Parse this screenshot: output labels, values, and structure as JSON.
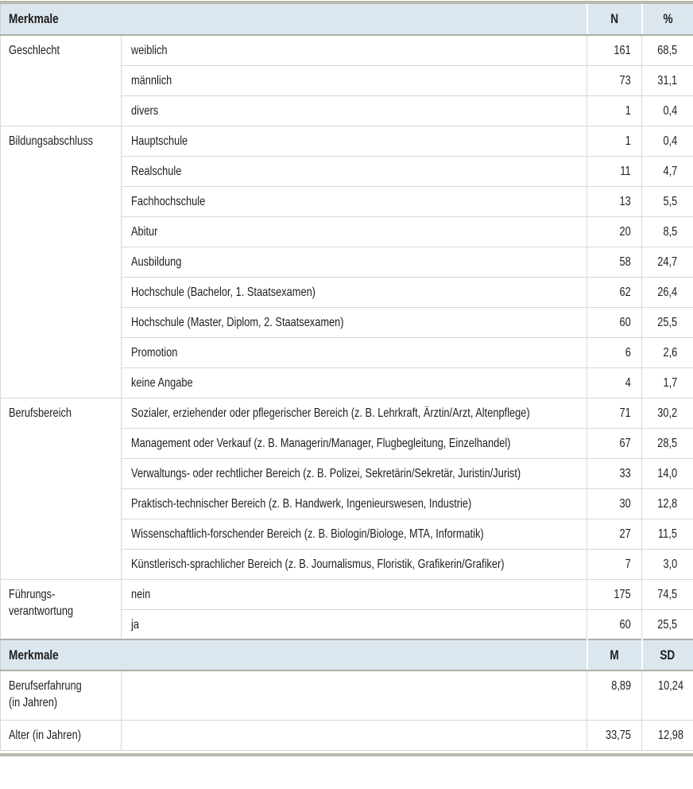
{
  "colors": {
    "header_bg": "#dce6ee",
    "frame": "#bcb8af",
    "header_border": "#aeaea6",
    "grid": "#d8d8d4",
    "text": "#1e1e1e"
  },
  "table": {
    "header_counts": {
      "label": "Merkmale",
      "col_a": "N",
      "col_b": "%"
    },
    "header_stats": {
      "label": "Merkmale",
      "col_a": "M",
      "col_b": "SD"
    },
    "groups": [
      {
        "label": "Geschlecht",
        "rows": [
          {
            "text": "weiblich",
            "n": "161",
            "pct": "68,5"
          },
          {
            "text": "männlich",
            "n": "73",
            "pct": "31,1"
          },
          {
            "text": "divers",
            "n": "1",
            "pct": "0,4"
          }
        ]
      },
      {
        "label": "Bildungsabschluss",
        "rows": [
          {
            "text": "Hauptschule",
            "n": "1",
            "pct": "0,4"
          },
          {
            "text": "Realschule",
            "n": "11",
            "pct": "4,7"
          },
          {
            "text": "Fachhochschule",
            "n": "13",
            "pct": "5,5"
          },
          {
            "text": "Abitur",
            "n": "20",
            "pct": "8,5"
          },
          {
            "text": "Ausbildung",
            "n": "58",
            "pct": "24,7"
          },
          {
            "text": "Hochschule (Bachelor, 1. Staatsexamen)",
            "n": "62",
            "pct": "26,4"
          },
          {
            "text": "Hochschule (Master, Diplom, 2. Staatsexamen)",
            "n": "60",
            "pct": "25,5"
          },
          {
            "text": "Promotion",
            "n": "6",
            "pct": "2,6"
          },
          {
            "text": "keine Angabe",
            "n": "4",
            "pct": "1,7"
          }
        ]
      },
      {
        "label": "Berufsbereich",
        "rows": [
          {
            "text": "Sozialer, erziehender oder pflegerischer Bereich (z. B. Lehrkraft, Ärztin/Arzt, Altenpflege)",
            "n": "71",
            "pct": "30,2"
          },
          {
            "text": "Management oder Verkauf (z. B. Managerin/Manager, Flugbegleitung, Einzelhandel)",
            "n": "67",
            "pct": "28,5"
          },
          {
            "text": "Verwaltungs- oder rechtlicher Bereich (z. B. Polizei, Sekretärin/Sekretär, Juristin/Jurist)",
            "n": "33",
            "pct": "14,0"
          },
          {
            "text": "Praktisch-technischer Bereich (z. B. Handwerk, Ingenieurswesen, Industrie)",
            "n": "30",
            "pct": "12,8"
          },
          {
            "text": "Wissenschaftlich-forschender Bereich (z. B. Biologin/Biologe, MTA, Informatik)",
            "n": "27",
            "pct": "11,5"
          },
          {
            "text": "Künstlerisch-sprachlicher Bereich (z. B. Journalismus, Floristik, Grafikerin/Grafiker)",
            "n": "7",
            "pct": "3,0"
          }
        ]
      },
      {
        "label": "Führungs-\nverantwortung",
        "rows": [
          {
            "text": "nein",
            "n": "175",
            "pct": "74,5"
          },
          {
            "text": "ja",
            "n": "60",
            "pct": "25,5"
          }
        ]
      }
    ],
    "stats": [
      {
        "label": "Berufserfahrung\n(in Jahren)",
        "m": "8,89",
        "sd": "10,24"
      },
      {
        "label": "Alter (in Jahren)",
        "m": "33,75",
        "sd": "12,98"
      }
    ]
  }
}
